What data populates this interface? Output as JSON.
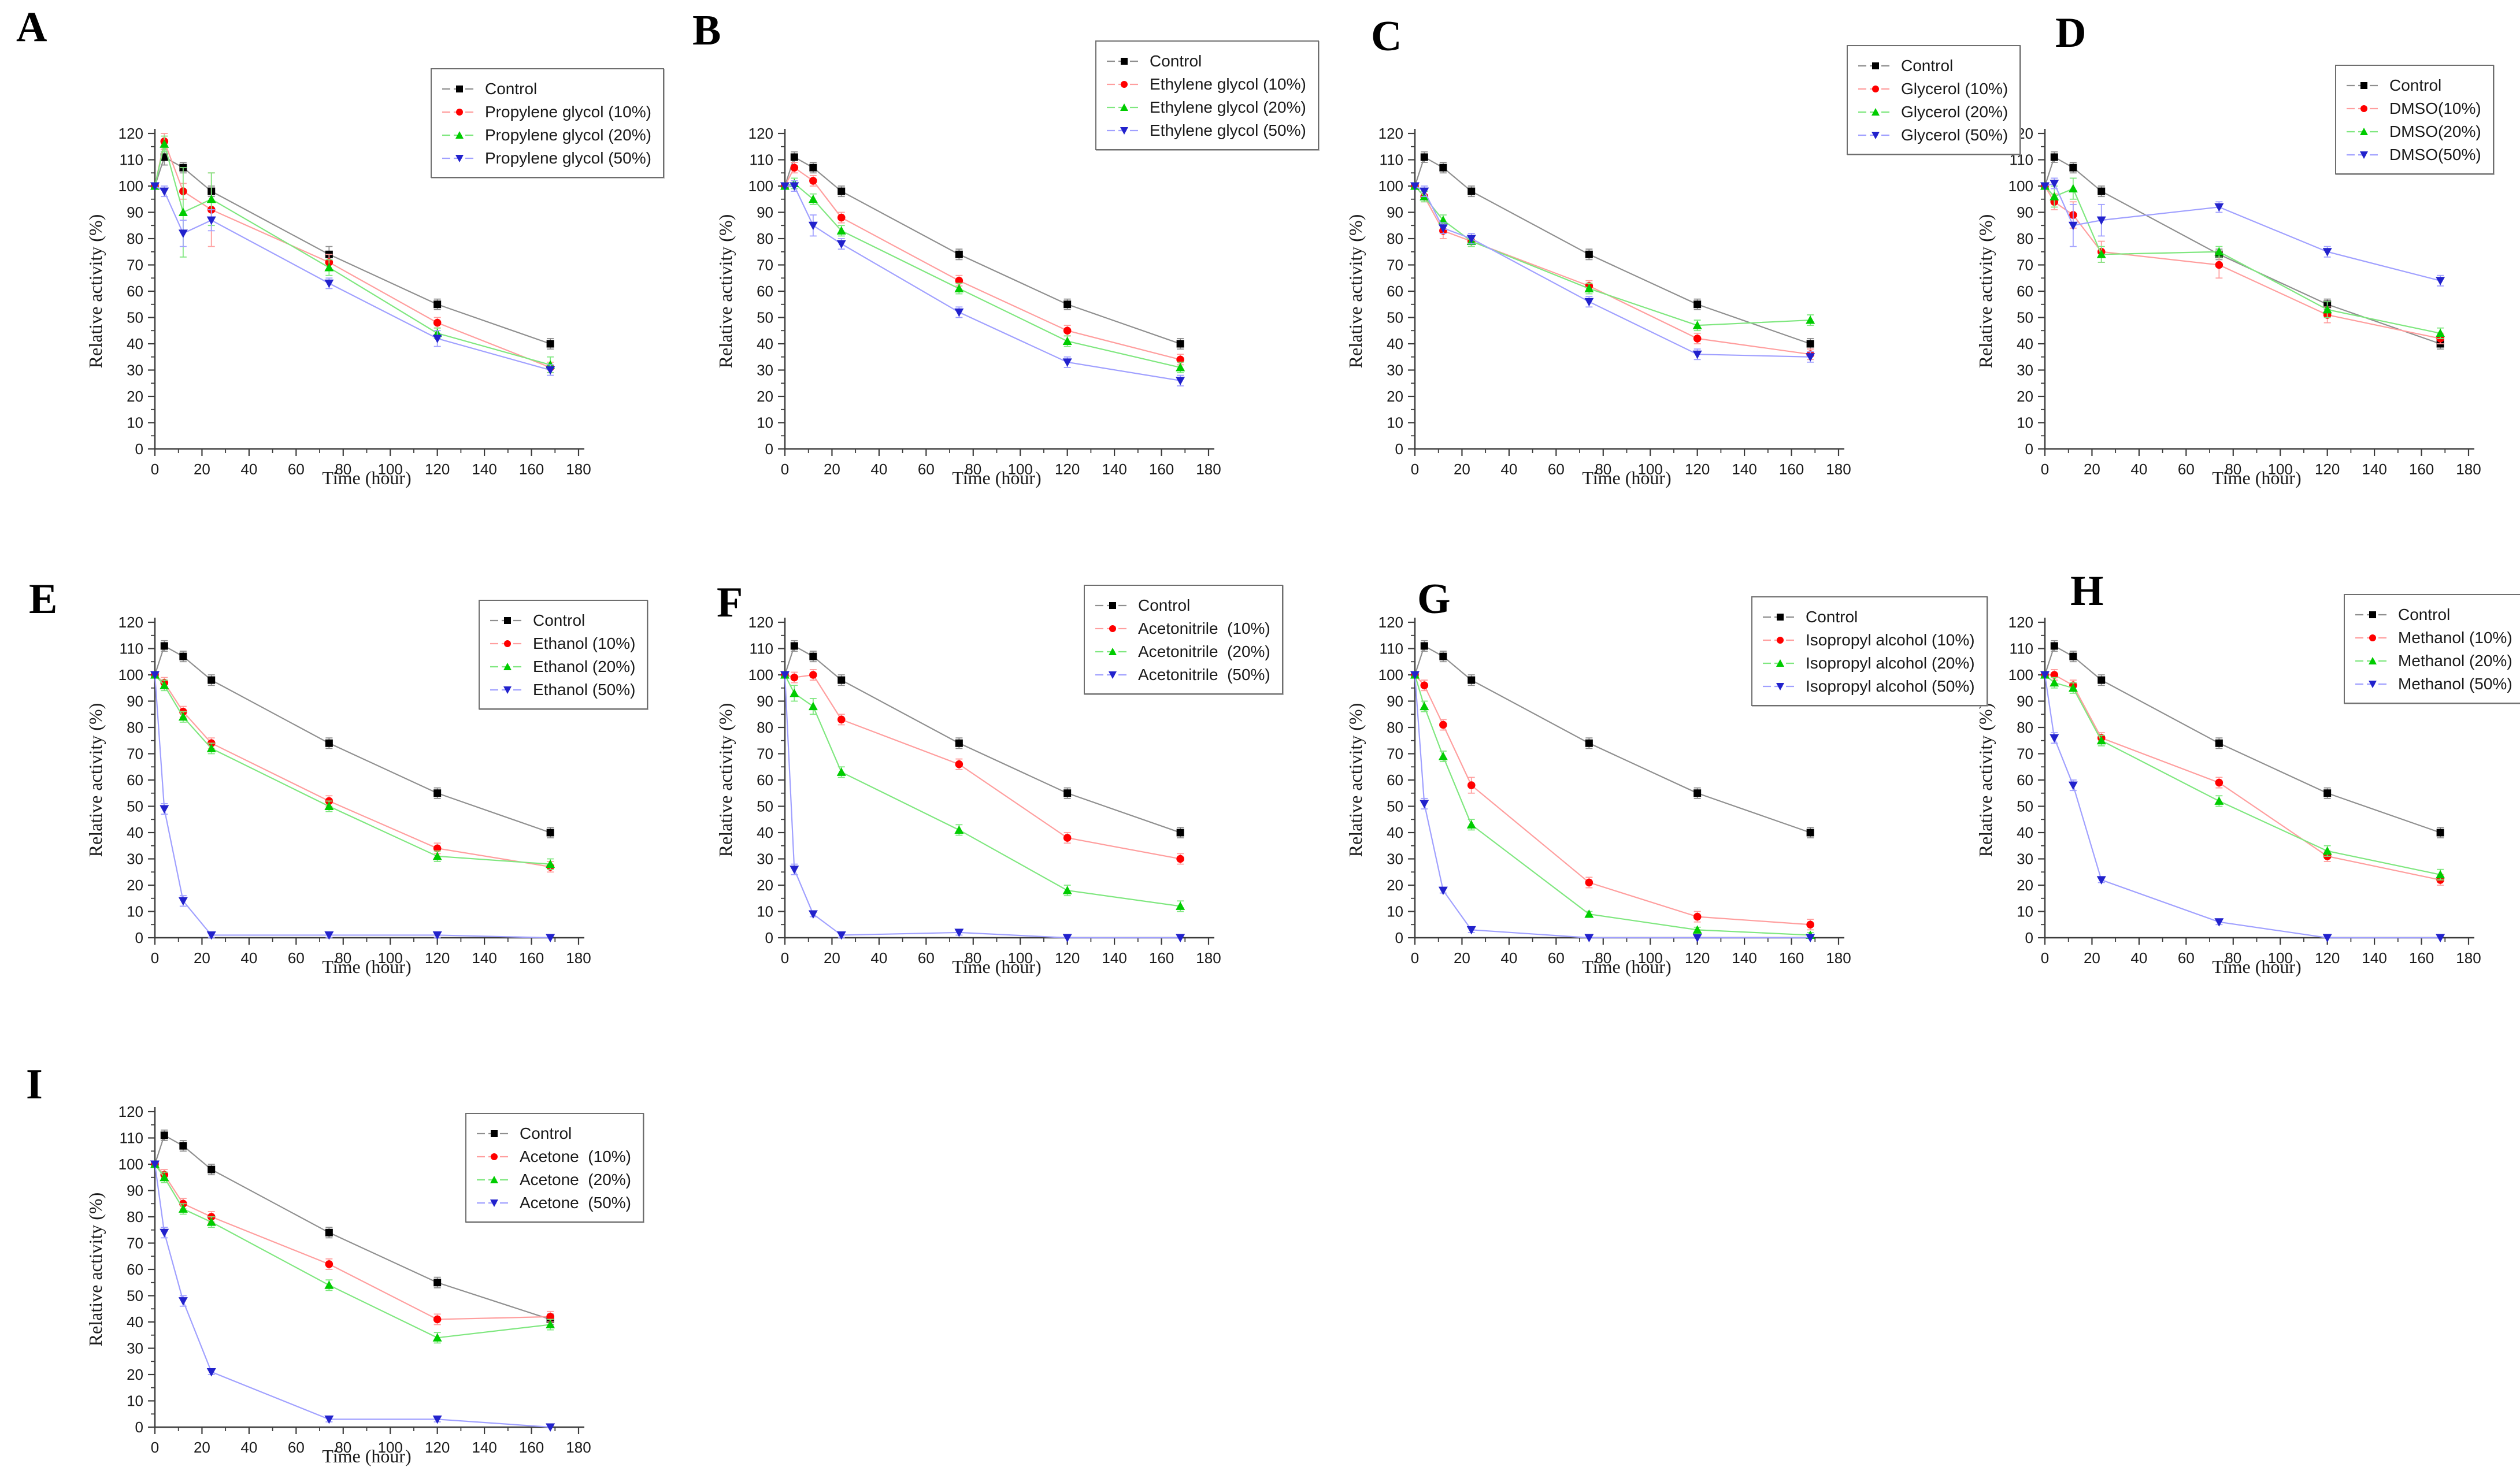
{
  "figure": {
    "xlabel": "Time (hour)",
    "ylabel": "Relative activity (%)",
    "x_ticks": [
      0,
      20,
      40,
      60,
      80,
      100,
      120,
      140,
      160,
      180
    ],
    "y_ticks": [
      0,
      10,
      20,
      30,
      40,
      50,
      60,
      70,
      80,
      90,
      100,
      110,
      120
    ],
    "x_minor_step": 10,
    "y_minor_step": 5,
    "xlim": [
      0,
      180
    ],
    "ylim": [
      0,
      120
    ],
    "grid": "off",
    "legend_position": "top-right"
  },
  "palette": {
    "control": {
      "marker": "#000000",
      "line": "#8f8f8f"
    },
    "c10": {
      "marker": "#ff0000",
      "line": "#ff9e9e"
    },
    "c20": {
      "marker": "#00cc00",
      "line": "#7fe77f"
    },
    "c50": {
      "marker": "#2222cc",
      "line": "#a0a0ff"
    }
  },
  "chart_data": [
    {
      "type": "line",
      "label": "A",
      "solvent": "Propylene glycol",
      "x": [
        0,
        4,
        12,
        24,
        74,
        120,
        168
      ],
      "series": [
        {
          "name": "Control",
          "marker": "square",
          "color_key": "control",
          "values": [
            100,
            111,
            107,
            98,
            74,
            55,
            40
          ],
          "err": [
            0,
            3,
            2,
            2,
            3,
            2,
            2
          ]
        },
        {
          "name": "Propylene glycol (10%)",
          "marker": "circle",
          "color_key": "c10",
          "values": [
            100,
            117,
            98,
            91,
            71,
            48,
            31
          ],
          "err": [
            0,
            3,
            3,
            14,
            3,
            2,
            2
          ]
        },
        {
          "name": "Propylene glycol (20%)",
          "marker": "triangle-up",
          "color_key": "c20",
          "values": [
            100,
            116,
            90,
            95,
            69,
            44,
            32
          ],
          "err": [
            0,
            3,
            17,
            10,
            3,
            2,
            3
          ]
        },
        {
          "name": "Propylene glycol (50%)",
          "marker": "triangle-down",
          "color_key": "c50",
          "values": [
            100,
            98,
            82,
            87,
            63,
            42,
            30
          ],
          "err": [
            0,
            2,
            5,
            4,
            2,
            3,
            2
          ]
        }
      ]
    },
    {
      "type": "line",
      "label": "B",
      "solvent": "Ethylene glycol",
      "x": [
        0,
        4,
        12,
        24,
        74,
        120,
        168
      ],
      "series": [
        {
          "name": "Control",
          "marker": "square",
          "color_key": "control",
          "values": [
            100,
            111,
            107,
            98,
            74,
            55,
            40
          ],
          "err": [
            0,
            2,
            2,
            2,
            2,
            2,
            2
          ]
        },
        {
          "name": "Ethylene glycol (10%)",
          "marker": "circle",
          "color_key": "c10",
          "values": [
            100,
            107,
            102,
            88,
            64,
            45,
            34
          ],
          "err": [
            0,
            2,
            2,
            2,
            2,
            2,
            2
          ]
        },
        {
          "name": "Ethylene glycol (20%)",
          "marker": "triangle-up",
          "color_key": "c20",
          "values": [
            100,
            101,
            95,
            83,
            61,
            41,
            31
          ],
          "err": [
            0,
            2,
            2,
            2,
            2,
            2,
            2
          ]
        },
        {
          "name": "Ethylene glycol (50%)",
          "marker": "triangle-down",
          "color_key": "c50",
          "values": [
            100,
            100,
            85,
            78,
            52,
            33,
            26
          ],
          "err": [
            0,
            2,
            4,
            2,
            2,
            2,
            2
          ]
        }
      ]
    },
    {
      "type": "line",
      "label": "C",
      "solvent": "Glycerol",
      "x": [
        0,
        4,
        12,
        24,
        74,
        120,
        168
      ],
      "series": [
        {
          "name": "Control",
          "marker": "square",
          "color_key": "control",
          "values": [
            100,
            111,
            107,
            98,
            74,
            55,
            40
          ],
          "err": [
            0,
            2,
            2,
            2,
            2,
            2,
            2
          ]
        },
        {
          "name": "Glycerol (10%)",
          "marker": "circle",
          "color_key": "c10",
          "values": [
            100,
            96,
            83,
            79,
            62,
            42,
            36
          ],
          "err": [
            0,
            2,
            3,
            2,
            2,
            2,
            2
          ]
        },
        {
          "name": "Glycerol (20%)",
          "marker": "triangle-up",
          "color_key": "c20",
          "values": [
            100,
            96,
            87,
            79,
            61,
            47,
            49
          ],
          "err": [
            0,
            2,
            2,
            2,
            2,
            2,
            2
          ]
        },
        {
          "name": "Glycerol (50%)",
          "marker": "triangle-down",
          "color_key": "c50",
          "values": [
            100,
            98,
            84,
            80,
            56,
            36,
            35
          ],
          "err": [
            0,
            2,
            2,
            2,
            2,
            2,
            2
          ]
        }
      ]
    },
    {
      "type": "line",
      "label": "D",
      "solvent": "DMSO",
      "x": [
        0,
        4,
        12,
        24,
        74,
        120,
        168
      ],
      "series": [
        {
          "name": "Control",
          "marker": "square",
          "color_key": "control",
          "values": [
            100,
            111,
            107,
            98,
            74,
            55,
            40
          ],
          "err": [
            0,
            2,
            2,
            2,
            2,
            2,
            2
          ]
        },
        {
          "name": "DMSO(10%)",
          "marker": "circle",
          "color_key": "c10",
          "values": [
            100,
            94,
            89,
            75,
            70,
            51,
            42
          ],
          "err": [
            0,
            3,
            5,
            4,
            5,
            3,
            2
          ]
        },
        {
          "name": "DMSO(20%)",
          "marker": "triangle-up",
          "color_key": "c20",
          "values": [
            100,
            96,
            99,
            74,
            75,
            53,
            44
          ],
          "err": [
            0,
            4,
            4,
            3,
            2,
            3,
            2
          ]
        },
        {
          "name": "DMSO(50%)",
          "marker": "triangle-down",
          "color_key": "c50",
          "values": [
            100,
            101,
            85,
            87,
            92,
            75,
            64
          ],
          "err": [
            0,
            2,
            8,
            6,
            2,
            2,
            2
          ]
        }
      ]
    },
    {
      "type": "line",
      "label": "E",
      "solvent": "Ethanol",
      "x": [
        0,
        4,
        12,
        24,
        74,
        120,
        168
      ],
      "series": [
        {
          "name": "Control",
          "marker": "square",
          "color_key": "control",
          "values": [
            100,
            111,
            107,
            98,
            74,
            55,
            40
          ],
          "err": [
            0,
            2,
            2,
            2,
            2,
            2,
            2
          ]
        },
        {
          "name": "Ethanol (10%)",
          "marker": "circle",
          "color_key": "c10",
          "values": [
            100,
            97,
            86,
            74,
            52,
            34,
            27
          ],
          "err": [
            0,
            2,
            2,
            2,
            2,
            2,
            2
          ]
        },
        {
          "name": "Ethanol (20%)",
          "marker": "triangle-up",
          "color_key": "c20",
          "values": [
            100,
            96,
            84,
            72,
            50,
            31,
            28
          ],
          "err": [
            0,
            2,
            2,
            2,
            2,
            2,
            2
          ]
        },
        {
          "name": "Ethanol (50%)",
          "marker": "triangle-down",
          "color_key": "c50",
          "values": [
            100,
            49,
            14,
            1,
            1,
            1,
            0
          ],
          "err": [
            0,
            2,
            2,
            1,
            1,
            1,
            0
          ]
        }
      ]
    },
    {
      "type": "line",
      "label": "F",
      "solvent": "Acetonitrile",
      "x": [
        0,
        4,
        12,
        24,
        74,
        120,
        168
      ],
      "series": [
        {
          "name": "Control",
          "marker": "square",
          "color_key": "control",
          "values": [
            100,
            111,
            107,
            98,
            74,
            55,
            40
          ],
          "err": [
            0,
            2,
            2,
            2,
            2,
            2,
            2
          ]
        },
        {
          "name": "Acetonitrile  (10%)",
          "marker": "circle",
          "color_key": "c10",
          "values": [
            100,
            99,
            100,
            83,
            66,
            38,
            30
          ],
          "err": [
            0,
            2,
            2,
            2,
            2,
            2,
            2
          ]
        },
        {
          "name": "Acetonitrile  (20%)",
          "marker": "triangle-up",
          "color_key": "c20",
          "values": [
            100,
            93,
            88,
            63,
            41,
            18,
            12
          ],
          "err": [
            0,
            3,
            3,
            2,
            2,
            2,
            2
          ]
        },
        {
          "name": "Acetonitrile  (50%)",
          "marker": "triangle-down",
          "color_key": "c50",
          "values": [
            100,
            26,
            9,
            1,
            2,
            0,
            0
          ],
          "err": [
            0,
            2,
            1,
            1,
            1,
            0,
            0
          ]
        }
      ]
    },
    {
      "type": "line",
      "label": "G",
      "solvent": "Isopropyl alcohol",
      "x": [
        0,
        4,
        12,
        24,
        74,
        120,
        168
      ],
      "series": [
        {
          "name": "Control",
          "marker": "square",
          "color_key": "control",
          "values": [
            100,
            111,
            107,
            98,
            74,
            55,
            40
          ],
          "err": [
            0,
            2,
            2,
            2,
            2,
            2,
            2
          ]
        },
        {
          "name": "Isopropyl alcohol (10%)",
          "marker": "circle",
          "color_key": "c10",
          "values": [
            100,
            96,
            81,
            58,
            21,
            8,
            5
          ],
          "err": [
            0,
            2,
            2,
            3,
            2,
            2,
            2
          ]
        },
        {
          "name": "Isopropyl alcohol (20%)",
          "marker": "triangle-up",
          "color_key": "c20",
          "values": [
            100,
            88,
            69,
            43,
            9,
            3,
            1
          ],
          "err": [
            0,
            2,
            2,
            2,
            1,
            1,
            1
          ]
        },
        {
          "name": "Isopropyl alcohol (50%)",
          "marker": "triangle-down",
          "color_key": "c50",
          "values": [
            100,
            51,
            18,
            3,
            0,
            0,
            0
          ],
          "err": [
            0,
            2,
            1,
            1,
            0,
            0,
            0
          ]
        }
      ]
    },
    {
      "type": "line",
      "label": "H",
      "solvent": "Methanol",
      "x": [
        0,
        4,
        12,
        24,
        74,
        120,
        168
      ],
      "series": [
        {
          "name": "Control",
          "marker": "square",
          "color_key": "control",
          "values": [
            100,
            111,
            107,
            98,
            74,
            55,
            40
          ],
          "err": [
            0,
            2,
            2,
            2,
            2,
            2,
            2
          ]
        },
        {
          "name": "Methanol (10%)",
          "marker": "circle",
          "color_key": "c10",
          "values": [
            100,
            100,
            96,
            76,
            59,
            31,
            22
          ],
          "err": [
            0,
            2,
            2,
            2,
            2,
            2,
            2
          ]
        },
        {
          "name": "Methanol (20%)",
          "marker": "triangle-up",
          "color_key": "c20",
          "values": [
            100,
            97,
            95,
            75,
            52,
            33,
            24
          ],
          "err": [
            0,
            2,
            2,
            2,
            2,
            2,
            2
          ]
        },
        {
          "name": "Methanol (50%)",
          "marker": "triangle-down",
          "color_key": "c50",
          "values": [
            100,
            76,
            58,
            22,
            6,
            0,
            0
          ],
          "err": [
            0,
            2,
            2,
            1,
            1,
            0,
            0
          ]
        }
      ]
    },
    {
      "type": "line",
      "label": "I",
      "solvent": "Acetone",
      "x": [
        0,
        4,
        12,
        24,
        74,
        120,
        168
      ],
      "series": [
        {
          "name": "Control",
          "marker": "square",
          "color_key": "control",
          "values": [
            100,
            111,
            107,
            98,
            74,
            55,
            41
          ],
          "err": [
            0,
            2,
            2,
            2,
            2,
            2,
            2
          ]
        },
        {
          "name": "Acetone  (10%)",
          "marker": "circle",
          "color_key": "c10",
          "values": [
            100,
            96,
            85,
            80,
            62,
            41,
            42
          ],
          "err": [
            0,
            2,
            2,
            2,
            2,
            2,
            2
          ]
        },
        {
          "name": "Acetone  (20%)",
          "marker": "triangle-up",
          "color_key": "c20",
          "values": [
            100,
            95,
            83,
            78,
            54,
            34,
            39
          ],
          "err": [
            0,
            2,
            2,
            2,
            2,
            2,
            2
          ]
        },
        {
          "name": "Acetone  (50%)",
          "marker": "triangle-down",
          "color_key": "c50",
          "values": [
            100,
            74,
            48,
            21,
            3,
            3,
            0
          ],
          "err": [
            0,
            2,
            2,
            1,
            1,
            1,
            0
          ]
        }
      ]
    }
  ]
}
